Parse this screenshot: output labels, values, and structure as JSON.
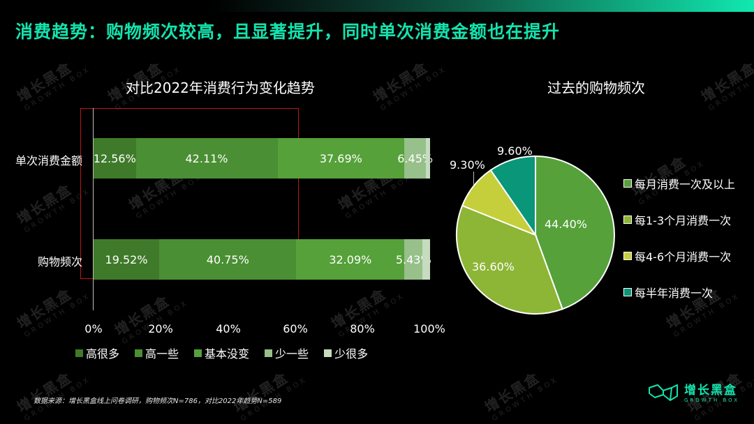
{
  "header": {
    "title": "消费趋势：购物频次较高，且显著提升，同时单次消费金额也在提升"
  },
  "bar_chart": {
    "title": "对比2022年消费行为变化趋势",
    "rows": [
      {
        "label": "单次消费金额",
        "segments": [
          {
            "value": 12.56,
            "label": "12.56%"
          },
          {
            "value": 42.11,
            "label": "42.11%"
          },
          {
            "value": 37.69,
            "label": "37.69%"
          },
          {
            "value": 6.45,
            "label": "6.45%"
          },
          {
            "value": 1.19,
            "label": ""
          }
        ]
      },
      {
        "label": "购物频次",
        "segments": [
          {
            "value": 19.52,
            "label": "19.52%"
          },
          {
            "value": 40.75,
            "label": "40.75%"
          },
          {
            "value": 32.09,
            "label": "32.09%"
          },
          {
            "value": 5.43,
            "label": "5.43%"
          },
          {
            "value": 2.21,
            "label": ""
          }
        ]
      }
    ],
    "x_ticks": [
      "0%",
      "20%",
      "40%",
      "60%",
      "80%",
      "100%"
    ],
    "legend": [
      {
        "label": "高很多",
        "color": "#3f7a2a"
      },
      {
        "label": "高一些",
        "color": "#4a8f33"
      },
      {
        "label": "基本没变",
        "color": "#56a13a"
      },
      {
        "label": "少一些",
        "color": "#97c08a"
      },
      {
        "label": "少很多",
        "color": "#c5dcbf"
      }
    ]
  },
  "pie_chart": {
    "title": "过去的购物频次",
    "slices": [
      {
        "label": "每月消费一次及以上",
        "value": 44.4,
        "display": "44.40%",
        "color": "#56a13a"
      },
      {
        "label": "每1-3个月消费一次",
        "value": 36.6,
        "display": "36.60%",
        "color": "#8db536"
      },
      {
        "label": "每4-6个月消费一次",
        "value": 9.3,
        "display": "9.30%",
        "color": "#c5cf3c"
      },
      {
        "label": "每半年消费一次",
        "value": 9.6,
        "display": "9.60%",
        "color": "#0a9678"
      }
    ]
  },
  "chart_data": [
    {
      "type": "bar",
      "orientation": "horizontal",
      "stacked": true,
      "title": "对比2022年消费行为变化趋势",
      "categories": [
        "单次消费金额",
        "购物频次"
      ],
      "series": [
        {
          "name": "高很多",
          "values": [
            12.56,
            19.52
          ]
        },
        {
          "name": "高一些",
          "values": [
            42.11,
            40.75
          ]
        },
        {
          "name": "基本没变",
          "values": [
            37.69,
            32.09
          ]
        },
        {
          "name": "少一些",
          "values": [
            6.45,
            5.43
          ]
        },
        {
          "name": "少很多",
          "values": [
            1.19,
            2.21
          ]
        }
      ],
      "xlabel": "",
      "ylabel": "",
      "xlim": [
        0,
        100
      ],
      "x_ticks": [
        "0%",
        "20%",
        "40%",
        "60%",
        "80%",
        "100%"
      ],
      "legend_position": "bottom",
      "grid": false,
      "annotation": "red highlight box over 0%–60% range"
    },
    {
      "type": "pie",
      "title": "过去的购物频次",
      "categories": [
        "每月消费一次及以上",
        "每1-3个月消费一次",
        "每4-6个月消费一次",
        "每半年消费一次"
      ],
      "values": [
        44.4,
        36.6,
        9.3,
        9.6
      ],
      "legend_position": "right"
    }
  ],
  "footnote": "数据来源：增长黑盒线上问卷调研，购物频次N=786，对比2022年趋势N=589",
  "logo": {
    "name": "增长黑盒",
    "sub": "GROWTH BOX"
  },
  "watermark": {
    "main": "增长黑盒",
    "sub": "GROWTH BOX"
  }
}
